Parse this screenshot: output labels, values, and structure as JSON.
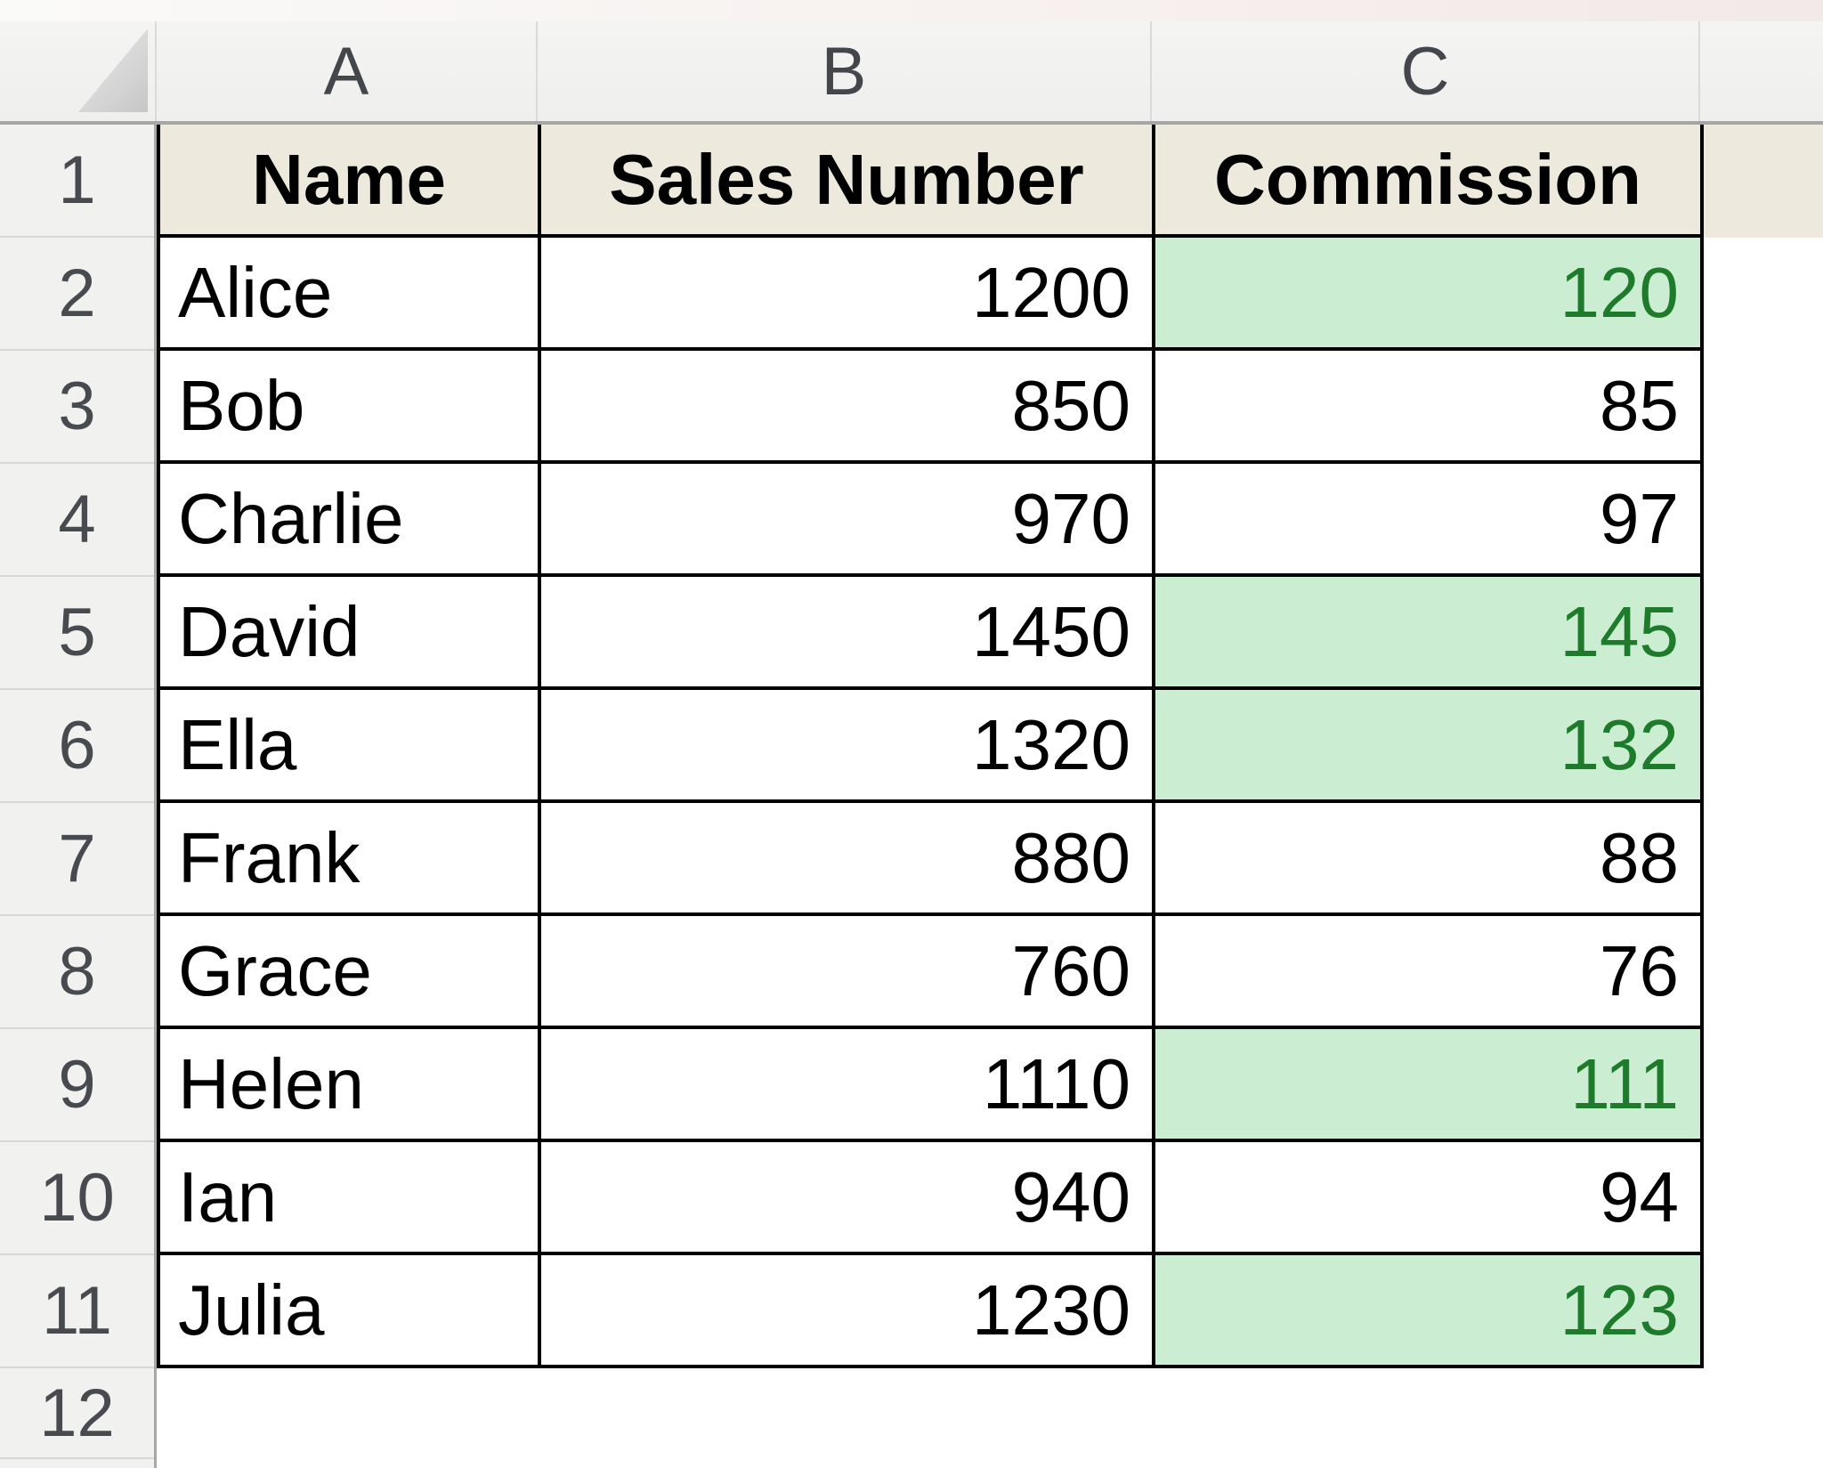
{
  "sheet": {
    "column_letters": [
      "A",
      "B",
      "C"
    ],
    "row_numbers": [
      "1",
      "2",
      "3",
      "4",
      "5",
      "6",
      "7",
      "8",
      "9",
      "10",
      "11",
      "12"
    ]
  },
  "table": {
    "column_headers": [
      "Name",
      "Sales Number",
      "Commission"
    ],
    "rows": [
      {
        "name": "Alice",
        "sales_number": "1200",
        "commission": "120",
        "commission_highlighted": true
      },
      {
        "name": "Bob",
        "sales_number": "850",
        "commission": "85",
        "commission_highlighted": false
      },
      {
        "name": "Charlie",
        "sales_number": "970",
        "commission": "97",
        "commission_highlighted": false
      },
      {
        "name": "David",
        "sales_number": "1450",
        "commission": "145",
        "commission_highlighted": true
      },
      {
        "name": "Ella",
        "sales_number": "1320",
        "commission": "132",
        "commission_highlighted": true
      },
      {
        "name": "Frank",
        "sales_number": "880",
        "commission": "88",
        "commission_highlighted": false
      },
      {
        "name": "Grace",
        "sales_number": "760",
        "commission": "76",
        "commission_highlighted": false
      },
      {
        "name": "Helen",
        "sales_number": "1110",
        "commission": "111",
        "commission_highlighted": true
      },
      {
        "name": "Ian",
        "sales_number": "940",
        "commission": "94",
        "commission_highlighted": false
      },
      {
        "name": "Julia",
        "sales_number": "1230",
        "commission": "123",
        "commission_highlighted": true
      }
    ]
  },
  "colors": {
    "highlight_fill": "#cbeed3",
    "highlight_text": "#1f7b2c",
    "header_row_fill": "#ede9dc",
    "grid_border": "#000000"
  }
}
